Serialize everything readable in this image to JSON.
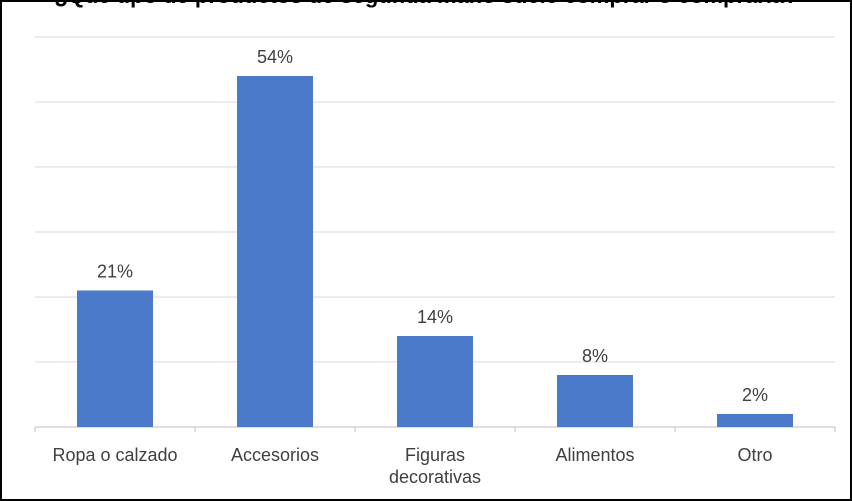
{
  "chart_data": {
    "type": "bar",
    "title": "¿Qué tipo de productos de segunda mano suele comprar o compraría?",
    "categories": [
      "Ropa o calzado",
      "Accesorios",
      "Figuras decorativas",
      "Alimentos",
      "Otro"
    ],
    "category_lines": [
      [
        "Ropa o calzado"
      ],
      [
        "Accesorios"
      ],
      [
        "Figuras",
        "decorativas"
      ],
      [
        "Alimentos"
      ],
      [
        "Otro"
      ]
    ],
    "values": [
      21,
      54,
      14,
      8,
      2
    ],
    "value_labels": [
      "21%",
      "54%",
      "14%",
      "8%",
      "2%"
    ],
    "ylim": [
      0,
      60
    ],
    "grid": true,
    "legend": "none",
    "bar_color": "#4A7AC9"
  }
}
